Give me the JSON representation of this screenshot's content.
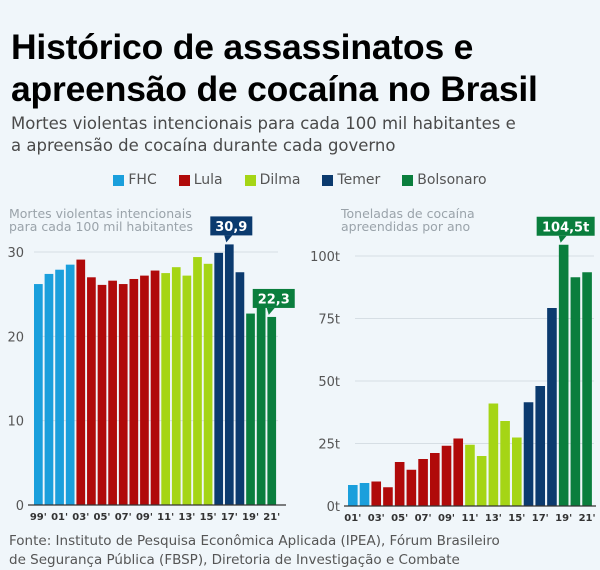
{
  "title_line1": "Histórico de assassinatos e",
  "title_line2": "apreensão de cocaína no Brasil",
  "subtitle_line1": "Mortes violentas intencionais para cada 100 mil habitantes e",
  "subtitle_line2": "a apreensão de cocaína durante cada governo",
  "legend": [
    {
      "name": "FHC",
      "color": "#1a9fdc"
    },
    {
      "name": "Lula",
      "color": "#b00a0a"
    },
    {
      "name": "Dilma",
      "color": "#a5d515"
    },
    {
      "name": "Temer",
      "color": "#0b3a6e"
    },
    {
      "name": "Bolsonaro",
      "color": "#0a7e3d"
    }
  ],
  "footer_line1": "Fonte: Instituto de Pesquisa Econômica Aplicada (IPEA), Fórum Brasileiro",
  "footer_line2": "de Segurança Pública (FBSP), Diretoria de Investigação e Combate",
  "chart_data": [
    {
      "type": "bar",
      "ylabel_line1": "Mortes violentas intencionais",
      "ylabel_line2": "para cada 100 mil habitantes",
      "ylim": [
        0,
        30
      ],
      "yticks": [
        {
          "v": 0,
          "label": "0"
        },
        {
          "v": 10,
          "label": "10"
        },
        {
          "v": 20,
          "label": "20"
        },
        {
          "v": 30,
          "label": "30"
        }
      ],
      "categories": [
        "99'",
        "00'",
        "01'",
        "02'",
        "03'",
        "04'",
        "05'",
        "06'",
        "07'",
        "08'",
        "09'",
        "10'",
        "11'",
        "12'",
        "13'",
        "14'",
        "15'",
        "16'",
        "17'",
        "18'",
        "19'",
        "20'",
        "21'"
      ],
      "xtick_labels": [
        "99'",
        "01'",
        "03'",
        "05'",
        "07'",
        "09'",
        "11'",
        "13'",
        "15'",
        "17'",
        "19'",
        "21'"
      ],
      "values": [
        26.2,
        27.4,
        27.9,
        28.5,
        29.1,
        27.0,
        26.1,
        26.6,
        26.2,
        26.8,
        27.2,
        27.8,
        27.5,
        28.2,
        27.2,
        29.4,
        28.6,
        29.9,
        30.9,
        27.6,
        22.7,
        23.8,
        22.3
      ],
      "government": [
        "FHC",
        "FHC",
        "FHC",
        "FHC",
        "Lula",
        "Lula",
        "Lula",
        "Lula",
        "Lula",
        "Lula",
        "Lula",
        "Lula",
        "Dilma",
        "Dilma",
        "Dilma",
        "Dilma",
        "Dilma",
        "Temer",
        "Temer",
        "Temer",
        "Bolsonaro",
        "Bolsonaro",
        "Bolsonaro"
      ],
      "annotations": [
        {
          "category": "17'",
          "label": "30,9",
          "color": "#0b3a6e"
        },
        {
          "category": "21'",
          "label": "22,3",
          "color": "#0a7e3d"
        }
      ],
      "grid": "horizontal at 30"
    },
    {
      "type": "bar",
      "ylabel_line1": "Toneladas de cocaína",
      "ylabel_line2": "apreendidas por ano",
      "ylim": [
        0,
        100
      ],
      "yticks": [
        {
          "v": 0,
          "label": "0t"
        },
        {
          "v": 25,
          "label": "25t"
        },
        {
          "v": 50,
          "label": "50t"
        },
        {
          "v": 75,
          "label": "75t"
        },
        {
          "v": 100,
          "label": "100t"
        }
      ],
      "categories": [
        "01'",
        "02'",
        "03'",
        "04'",
        "05'",
        "06'",
        "07'",
        "08'",
        "09'",
        "10'",
        "11'",
        "12'",
        "13'",
        "14'",
        "15'",
        "16'",
        "17'",
        "18'",
        "19'",
        "20'",
        "21'"
      ],
      "xtick_labels": [
        "01'",
        "03'",
        "05'",
        "07'",
        "09'",
        "11'",
        "13'",
        "15'",
        "17'",
        "19'",
        "21'"
      ],
      "values": [
        8.4,
        9.2,
        9.8,
        7.5,
        17.6,
        14.5,
        18.8,
        21.2,
        24.1,
        27.0,
        24.5,
        20.0,
        41.0,
        34.0,
        27.4,
        41.5,
        48.0,
        79.2,
        104.5,
        91.5,
        93.5
      ],
      "government": [
        "FHC",
        "FHC",
        "Lula",
        "Lula",
        "Lula",
        "Lula",
        "Lula",
        "Lula",
        "Lula",
        "Lula",
        "Dilma",
        "Dilma",
        "Dilma",
        "Dilma",
        "Dilma",
        "Temer",
        "Temer",
        "Temer",
        "Bolsonaro",
        "Bolsonaro",
        "Bolsonaro"
      ],
      "annotations": [
        {
          "category": "19'",
          "label": "104,5t",
          "color": "#0a7e3d"
        }
      ],
      "grid": "horizontal at 25, 50, 75, 100"
    }
  ]
}
